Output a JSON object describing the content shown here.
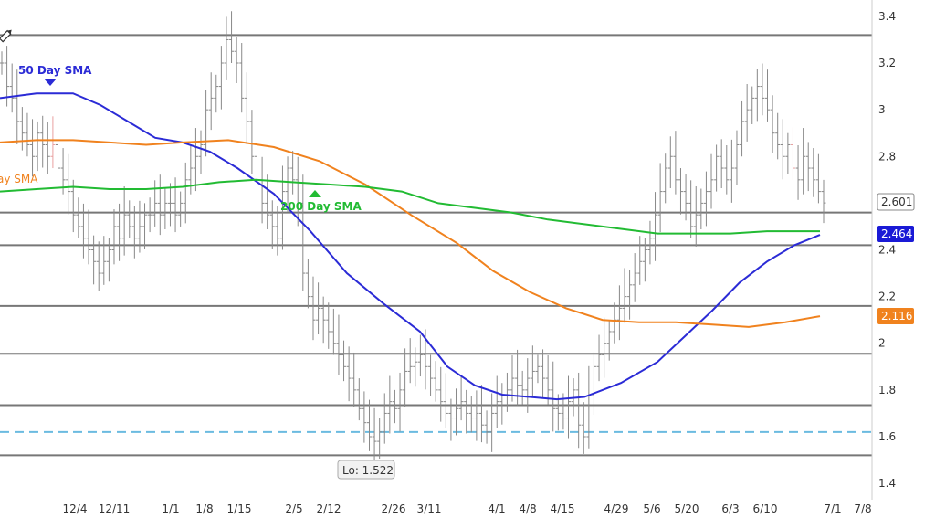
{
  "chart_data": {
    "type": "ohlc",
    "x_ticks": [
      "12/4",
      "12/11",
      "1/1",
      "1/8",
      "1/15",
      "2/5",
      "2/12",
      "2/26",
      "3/11",
      "4/1",
      "4/8",
      "4/15",
      "4/29",
      "5/6",
      "5/20",
      "6/3",
      "6/10",
      "7/1",
      "7/8"
    ],
    "y_ticks": [
      "1.4",
      "1.6",
      "1.8",
      "2",
      "2.2",
      "2.4",
      "2.6",
      "2.8",
      "3",
      "3.2",
      "3.4"
    ],
    "ylim": [
      1.33,
      3.47
    ],
    "grid": false,
    "horizontal_levels": [
      3.32,
      2.56,
      2.42,
      2.16,
      1.955,
      1.735,
      1.52
    ],
    "dashed_level": 1.62,
    "price_bars": {
      "x_start": 0,
      "x_end": 900,
      "close": [
        3.2,
        3.1,
        3.05,
        2.95,
        2.9,
        2.85,
        2.8,
        2.9,
        2.85,
        2.8,
        2.85,
        2.75,
        2.7,
        2.65,
        2.55,
        2.5,
        2.45,
        2.4,
        2.35,
        2.3,
        2.35,
        2.4,
        2.5,
        2.45,
        2.55,
        2.5,
        2.45,
        2.5,
        2.55,
        2.55,
        2.6,
        2.55,
        2.6,
        2.6,
        2.55,
        2.6,
        2.7,
        2.75,
        2.8,
        2.85,
        3.0,
        3.05,
        3.1,
        3.2,
        3.3,
        3.25,
        3.2,
        3.05,
        2.95,
        2.8,
        2.7,
        2.6,
        2.55,
        2.5,
        2.45,
        2.65,
        2.75,
        2.7,
        2.6,
        2.3,
        2.2,
        2.1,
        2.15,
        2.1,
        2.05,
        2.0,
        1.95,
        1.9,
        1.85,
        1.8,
        1.72,
        1.66,
        1.6,
        1.58,
        1.62,
        1.7,
        1.75,
        1.72,
        1.8,
        1.88,
        1.9,
        1.92,
        1.95,
        1.9,
        1.85,
        1.8,
        1.75,
        1.7,
        1.68,
        1.72,
        1.75,
        1.7,
        1.68,
        1.7,
        1.65,
        1.62,
        1.7,
        1.75,
        1.78,
        1.8,
        1.85,
        1.82,
        1.8,
        1.85,
        1.88,
        1.9,
        1.85,
        1.8,
        1.72,
        1.7,
        1.68,
        1.75,
        1.8,
        1.65,
        1.6,
        1.78,
        1.9,
        1.95,
        2.0,
        2.05,
        2.1,
        2.15,
        2.2,
        2.25,
        2.3,
        2.35,
        2.4,
        2.45,
        2.55,
        2.65,
        2.75,
        2.8,
        2.7,
        2.65,
        2.6,
        2.5,
        2.55,
        2.6,
        2.65,
        2.7,
        2.8,
        2.75,
        2.7,
        2.75,
        2.85,
        2.95,
        3.0,
        3.05,
        3.1,
        3.05,
        3.0,
        2.9,
        2.85,
        2.8,
        2.85,
        2.75,
        2.7,
        2.8,
        2.75,
        2.7,
        2.65,
        2.601
      ]
    },
    "series": [
      {
        "name": "50 Day SMA",
        "color": "#2b2bd6",
        "x": [
          0,
          40,
          80,
          110,
          140,
          170,
          200,
          230,
          260,
          300,
          340,
          380,
          420,
          460,
          490,
          520,
          550,
          580,
          610,
          640,
          680,
          720,
          750,
          780,
          810,
          840,
          870,
          898
        ],
        "values": [
          3.05,
          3.07,
          3.07,
          3.02,
          2.95,
          2.88,
          2.86,
          2.82,
          2.75,
          2.64,
          2.48,
          2.3,
          2.17,
          2.05,
          1.9,
          1.82,
          1.78,
          1.77,
          1.76,
          1.77,
          1.83,
          1.92,
          2.03,
          2.14,
          2.26,
          2.35,
          2.42,
          2.464
        ]
      },
      {
        "name": "100 Day SMA",
        "color": "#f0821e",
        "x": [
          0,
          40,
          80,
          120,
          160,
          200,
          250,
          300,
          350,
          400,
          450,
          500,
          540,
          580,
          620,
          660,
          700,
          740,
          780,
          820,
          860,
          898
        ],
        "values": [
          2.86,
          2.87,
          2.87,
          2.86,
          2.85,
          2.86,
          2.87,
          2.84,
          2.78,
          2.68,
          2.55,
          2.43,
          2.31,
          2.22,
          2.15,
          2.1,
          2.09,
          2.09,
          2.08,
          2.07,
          2.09,
          2.116
        ]
      },
      {
        "name": "200 Day SMA",
        "color": "#22bb33",
        "x": [
          0,
          40,
          80,
          120,
          160,
          200,
          240,
          280,
          320,
          360,
          400,
          440,
          480,
          520,
          560,
          600,
          640,
          680,
          720,
          760,
          800,
          840,
          880,
          898
        ],
        "values": [
          2.65,
          2.66,
          2.67,
          2.66,
          2.66,
          2.67,
          2.69,
          2.7,
          2.69,
          2.68,
          2.67,
          2.65,
          2.6,
          2.58,
          2.56,
          2.53,
          2.51,
          2.49,
          2.47,
          2.47,
          2.47,
          2.48,
          2.48,
          2.48
        ]
      }
    ]
  },
  "sma_labels": {
    "sma50": "50 Day SMA",
    "sma100_partial": "ay SMA",
    "sma200": "200 Day SMA"
  },
  "price_tags": {
    "last": {
      "text": "2.601",
      "value": 2.601,
      "bg": "#ffffff",
      "fg": "#333333",
      "border": "#888888"
    },
    "sma50": {
      "text": "2.464",
      "value": 2.464,
      "bg": "#1a1ad6",
      "fg": "#ffffff",
      "border": "#1a1ad6"
    },
    "sma100": {
      "text": "2.116",
      "value": 2.116,
      "bg": "#f0821e",
      "fg": "#ffffff",
      "border": "#f0821e"
    }
  },
  "low_callout": {
    "text": "Lo: 1.522",
    "value": 1.522
  },
  "colors": {
    "level_line": "#777777",
    "dashed_line": "#6bbbe0",
    "bar": "#888888",
    "bar_red": "#e8a0a0",
    "axis_divider": "#cccccc"
  },
  "icons": [
    "pencil-icon"
  ]
}
